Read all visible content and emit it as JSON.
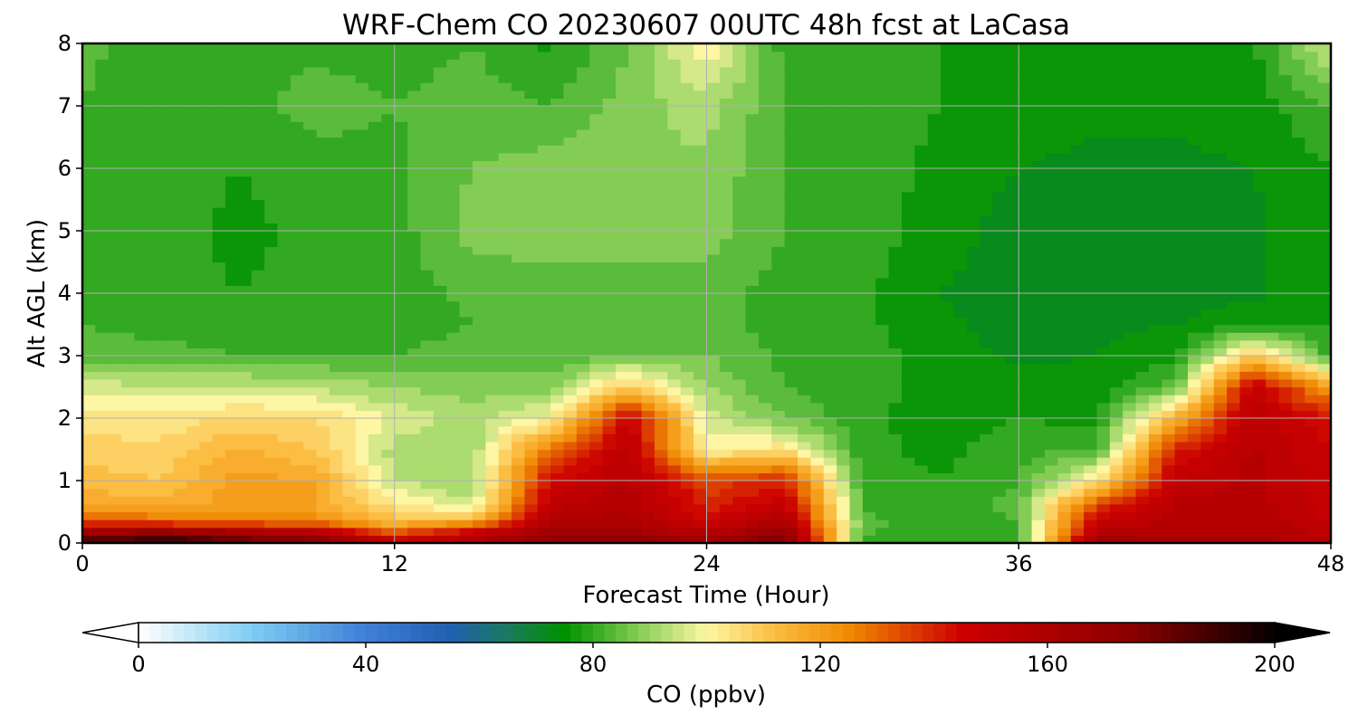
{
  "chart_data": {
    "type": "heatmap",
    "subtype": "filled-contour time-height cross-section",
    "title": "WRF-Chem CO  20230607 00UTC 48h fcst at LaCasa",
    "xlabel": "Forecast Time (Hour)",
    "ylabel": "Alt AGL (km)",
    "xlim": [
      0,
      48
    ],
    "ylim": [
      0,
      8
    ],
    "x_ticks": [
      0,
      12,
      24,
      36,
      48
    ],
    "y_ticks": [
      0,
      1,
      2,
      3,
      4,
      5,
      6,
      7,
      8
    ],
    "x_tick_labels": [
      "0",
      "12",
      "24",
      "36",
      "48"
    ],
    "y_tick_labels": [
      "0",
      "1",
      "2",
      "3",
      "4",
      "5",
      "6",
      "7",
      "8"
    ],
    "grid": true,
    "colorbar": {
      "label": "CO  (ppbv)",
      "orientation": "horizontal",
      "placement": "bottom",
      "range": [
        0,
        200
      ],
      "extend": "both",
      "ticks": [
        0,
        40,
        80,
        120,
        160,
        200
      ],
      "tick_labels": [
        "0",
        "40",
        "80",
        "120",
        "160",
        "200"
      ],
      "color_stops": [
        {
          "value": 0,
          "color": "#ffffff"
        },
        {
          "value": 20,
          "color": "#7ecdf2"
        },
        {
          "value": 40,
          "color": "#3f7fd8"
        },
        {
          "value": 55,
          "color": "#2060b0"
        },
        {
          "value": 65,
          "color": "#1a7a5e"
        },
        {
          "value": 75,
          "color": "#009100"
        },
        {
          "value": 88,
          "color": "#84cd55"
        },
        {
          "value": 100,
          "color": "#fdf6a4"
        },
        {
          "value": 112,
          "color": "#fbbd42"
        },
        {
          "value": 125,
          "color": "#f08a04"
        },
        {
          "value": 145,
          "color": "#cc0000"
        },
        {
          "value": 175,
          "color": "#8a0000"
        },
        {
          "value": 200,
          "color": "#050000"
        }
      ],
      "under_color": "#ffffff",
      "over_color": "#000000"
    },
    "x": [
      0,
      3,
      6,
      9,
      12,
      15,
      18,
      21,
      24,
      27,
      30,
      33,
      36,
      39,
      42,
      45,
      48
    ],
    "y": [
      0,
      0.15,
      0.35,
      0.6,
      1,
      1.5,
      2,
      2.5,
      3,
      3.5,
      4,
      5,
      6,
      7,
      8
    ],
    "z": [
      [
        190,
        198,
        188,
        182,
        150,
        160,
        175,
        178,
        168,
        182,
        80,
        78,
        80,
        170,
        160,
        160,
        158
      ],
      [
        170,
        176,
        168,
        160,
        135,
        152,
        165,
        165,
        155,
        172,
        82,
        78,
        80,
        158,
        158,
        158,
        152
      ],
      [
        135,
        130,
        128,
        125,
        112,
        118,
        158,
        160,
        145,
        160,
        84,
        78,
        82,
        148,
        155,
        158,
        150
      ],
      [
        118,
        116,
        120,
        118,
        104,
        95,
        152,
        158,
        140,
        150,
        82,
        78,
        84,
        136,
        155,
        156,
        148
      ],
      [
        112,
        110,
        120,
        118,
        94,
        90,
        145,
        155,
        135,
        140,
        80,
        78,
        82,
        104,
        150,
        155,
        147
      ],
      [
        108,
        107,
        115,
        110,
        92,
        91,
        128,
        152,
        100,
        105,
        79,
        77,
        80,
        82,
        140,
        155,
        146
      ],
      [
        104,
        103,
        107,
        106,
        97,
        92,
        100,
        148,
        96,
        86,
        79,
        76,
        78,
        77,
        115,
        153,
        142
      ],
      [
        96,
        95,
        95,
        93,
        90,
        88,
        88,
        110,
        90,
        82,
        80,
        76,
        76,
        76,
        84,
        150,
        120
      ],
      [
        84,
        84,
        82,
        82,
        82,
        84,
        83,
        86,
        86,
        81,
        80,
        76,
        73,
        74,
        77,
        110,
        80
      ],
      [
        82,
        80,
        79,
        80,
        80,
        82,
        82,
        82,
        84,
        80,
        79,
        75,
        72,
        73,
        74,
        78,
        78
      ],
      [
        82,
        79,
        78,
        79,
        80,
        83,
        84,
        83,
        84,
        80,
        79,
        74,
        71,
        72,
        71,
        73,
        77
      ],
      [
        82,
        80,
        77,
        79,
        80,
        88,
        88,
        89,
        88,
        82,
        80,
        76,
        72,
        71,
        70,
        73,
        77
      ],
      [
        81,
        80,
        78,
        80,
        81,
        86,
        88,
        90,
        89,
        82,
        80,
        77,
        74,
        73,
        73,
        74,
        78
      ],
      [
        82,
        79,
        80,
        84,
        82,
        84,
        82,
        88,
        92,
        82,
        80,
        78,
        76,
        75,
        75,
        76,
        82
      ],
      [
        83,
        80,
        80,
        81,
        80,
        82,
        77,
        86,
        102,
        80,
        79,
        78,
        76,
        76,
        76,
        77,
        96
      ]
    ]
  }
}
